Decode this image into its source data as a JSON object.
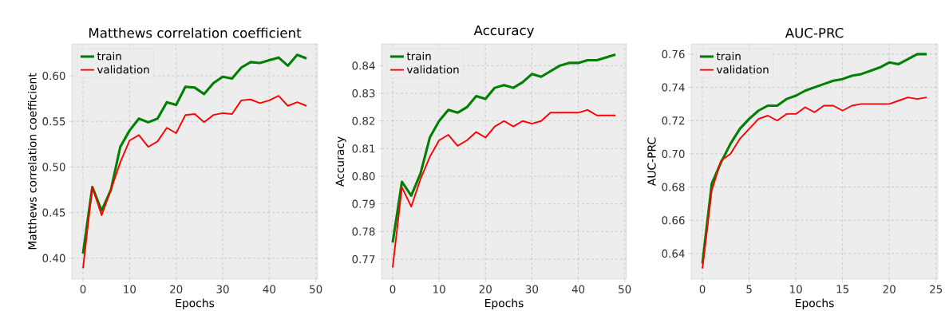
{
  "chart_data": [
    {
      "type": "line",
      "title": "Matthews correlation coefficient",
      "xlabel": "Epochs",
      "ylabel": "Matthews correlation coefficient",
      "x": [
        0,
        2,
        4,
        6,
        8,
        10,
        12,
        14,
        16,
        18,
        20,
        22,
        24,
        26,
        28,
        30,
        32,
        34,
        36,
        38,
        40,
        42,
        44,
        46,
        48
      ],
      "series": [
        {
          "name": "train",
          "color": "#008000",
          "values": [
            0.405,
            0.478,
            0.452,
            0.475,
            0.522,
            0.54,
            0.553,
            0.549,
            0.553,
            0.571,
            0.568,
            0.588,
            0.587,
            0.58,
            0.592,
            0.599,
            0.597,
            0.609,
            0.615,
            0.614,
            0.617,
            0.62,
            0.611,
            0.623,
            0.619
          ]
        },
        {
          "name": "validation",
          "color": "#ff0000",
          "values": [
            0.389,
            0.478,
            0.447,
            0.475,
            0.505,
            0.529,
            0.535,
            0.522,
            0.528,
            0.543,
            0.537,
            0.557,
            0.558,
            0.549,
            0.557,
            0.559,
            0.558,
            0.573,
            0.574,
            0.57,
            0.573,
            0.578,
            0.567,
            0.571,
            0.567
          ]
        }
      ],
      "xlim": [
        -2.4,
        50.4
      ],
      "ylim": [
        0.377,
        0.635
      ],
      "xticks": [
        0,
        10,
        20,
        30,
        40,
        50
      ],
      "yticks": [
        {
          "value": 0.4,
          "label": "0.40"
        },
        {
          "value": 0.45,
          "label": "0.45"
        },
        {
          "value": 0.5,
          "label": "0.50"
        },
        {
          "value": 0.55,
          "label": "0.55"
        },
        {
          "value": 0.6,
          "label": "0.60"
        }
      ],
      "grid": true,
      "legend": "top left",
      "line_style": "solid",
      "marker": "none"
    },
    {
      "type": "line",
      "title": "Accuracy",
      "xlabel": "Epochs",
      "ylabel": "Accuracy",
      "x": [
        0,
        2,
        4,
        6,
        8,
        10,
        12,
        14,
        16,
        18,
        20,
        22,
        24,
        26,
        28,
        30,
        32,
        34,
        36,
        38,
        40,
        42,
        44,
        46,
        48
      ],
      "series": [
        {
          "name": "train",
          "color": "#008000",
          "values": [
            0.776,
            0.798,
            0.793,
            0.801,
            0.814,
            0.82,
            0.824,
            0.823,
            0.825,
            0.829,
            0.828,
            0.832,
            0.833,
            0.832,
            0.834,
            0.837,
            0.836,
            0.838,
            0.84,
            0.841,
            0.841,
            0.842,
            0.842,
            0.843,
            0.844
          ]
        },
        {
          "name": "validation",
          "color": "#ff0000",
          "values": [
            0.767,
            0.796,
            0.789,
            0.799,
            0.807,
            0.813,
            0.815,
            0.811,
            0.813,
            0.816,
            0.814,
            0.818,
            0.82,
            0.818,
            0.82,
            0.819,
            0.82,
            0.823,
            0.823,
            0.823,
            0.823,
            0.824,
            0.822,
            0.822,
            0.822
          ]
        }
      ],
      "xlim": [
        -2.4,
        50.4
      ],
      "ylim": [
        0.7628,
        0.8479
      ],
      "xticks": [
        0,
        10,
        20,
        30,
        40,
        50
      ],
      "yticks": [
        0.77,
        0.78,
        0.79,
        {
          "value": 0.8,
          "label": "0.80"
        },
        0.81,
        0.82,
        0.83,
        0.84
      ],
      "grid": true,
      "legend": "top left",
      "line_style": "solid",
      "marker": "none"
    },
    {
      "type": "line",
      "title": "AUC-PRC",
      "xlabel": "Epochs",
      "ylabel": "AUC-PRC",
      "x": [
        0,
        1,
        2,
        3,
        4,
        5,
        6,
        7,
        8,
        9,
        10,
        11,
        12,
        13,
        14,
        15,
        16,
        17,
        18,
        19,
        20,
        21,
        22,
        23,
        24
      ],
      "series": [
        {
          "name": "train",
          "color": "#008000",
          "values": [
            0.634,
            0.682,
            0.695,
            0.706,
            0.715,
            0.721,
            0.726,
            0.729,
            0.729,
            0.733,
            0.735,
            0.738,
            0.74,
            0.742,
            0.744,
            0.745,
            0.747,
            0.748,
            0.75,
            0.752,
            0.755,
            0.754,
            0.757,
            0.76,
            0.76
          ]
        },
        {
          "name": "validation",
          "color": "#ff0000",
          "values": [
            0.631,
            0.678,
            0.696,
            0.7,
            0.709,
            0.715,
            0.721,
            0.723,
            0.72,
            0.724,
            0.724,
            0.728,
            0.725,
            0.729,
            0.729,
            0.726,
            0.729,
            0.73,
            0.73,
            0.73,
            0.73,
            0.732,
            0.734,
            0.733,
            0.734
          ]
        }
      ],
      "xlim": [
        -1.2,
        25.2
      ],
      "ylim": [
        0.6246,
        0.7662
      ],
      "xticks": [
        0,
        5,
        10,
        15,
        20,
        25
      ],
      "yticks": [
        0.64,
        0.66,
        0.68,
        {
          "value": 0.7,
          "label": "0.70"
        },
        0.72,
        0.74,
        0.76
      ],
      "grid": true,
      "legend": "top left",
      "line_style": "solid",
      "marker": "none"
    }
  ]
}
